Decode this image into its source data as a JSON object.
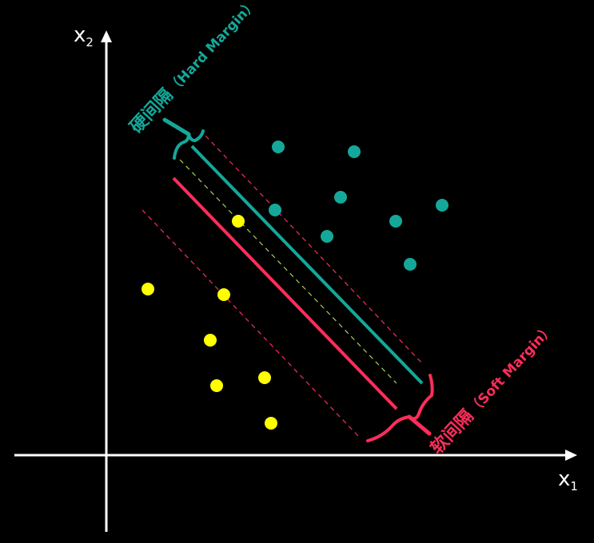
{
  "axes": {
    "x_label": "x",
    "x_sub": "1",
    "y_label": "x",
    "y_sub": "2"
  },
  "hard_margin": {
    "label_cn": "硬间隔",
    "label_en": "（Hard Margin）",
    "color": "#14a89a"
  },
  "soft_margin": {
    "label_cn": "软间隔",
    "label_en": "（Soft Margin）",
    "color": "#ff2d5a"
  },
  "colors": {
    "positive_class": "#14a89a",
    "negative_class": "#ffff00",
    "center_line": "#a8d05a",
    "axis": "#ffffff"
  }
}
